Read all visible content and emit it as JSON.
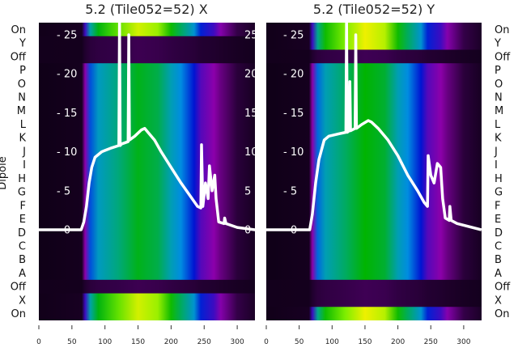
{
  "chart_data": [
    {
      "type": "heatmap",
      "title": "5.2 (Tile052=52) X",
      "ylabel": "Dipole",
      "row_labels": [
        "On",
        "Y",
        "Off",
        "P",
        "O",
        "N",
        "M",
        "L",
        "K",
        "J",
        "I",
        "H",
        "G",
        "F",
        "E",
        "D",
        "C",
        "B",
        "A",
        "Off",
        "X",
        "On"
      ],
      "row_kind": [
        "on",
        "off",
        "off",
        "sky",
        "sky",
        "sky",
        "sky",
        "sky",
        "sky",
        "sky",
        "sky",
        "sky",
        "sky",
        "sky",
        "sky",
        "sky",
        "sky",
        "sky",
        "sky",
        "off",
        "on",
        "on"
      ],
      "x_ticks": [
        0,
        50,
        100,
        150,
        200,
        250,
        300
      ],
      "xlim": [
        0,
        327
      ],
      "profile_x": [
        0,
        65,
        70,
        78,
        90,
        120,
        150,
        180,
        200,
        215,
        235,
        245,
        265,
        275,
        300,
        330
      ],
      "profile_intensity": [
        0.02,
        0.04,
        0.3,
        0.5,
        0.6,
        0.68,
        0.76,
        0.72,
        0.62,
        0.55,
        0.45,
        0.36,
        0.3,
        0.24,
        0.12,
        0.05
      ],
      "line": {
        "y_ticks": [
          0,
          5,
          10,
          15,
          20,
          25
        ],
        "ylim": [
          -11.5,
          26.5
        ],
        "x": [
          0,
          64,
          68,
          72,
          76,
          80,
          85,
          95,
          110,
          121,
          122,
          123,
          125,
          135,
          136,
          137,
          145,
          155,
          160,
          165,
          175,
          185,
          200,
          215,
          230,
          240,
          245,
          246,
          248,
          252,
          256,
          258,
          262,
          266,
          268,
          272,
          280,
          281,
          283,
          300,
          327
        ],
        "y": [
          0,
          0,
          1,
          3,
          6,
          8,
          9.3,
          10,
          10.5,
          10.8,
          27,
          10.8,
          11,
          11.3,
          25,
          11.5,
          12,
          12.8,
          13,
          12.5,
          11.5,
          10,
          8,
          6,
          4.2,
          3,
          2.8,
          10.9,
          3,
          6,
          4,
          8.2,
          5,
          7,
          4,
          1,
          0.8,
          1.5,
          0.8,
          0.3,
          0
        ]
      }
    },
    {
      "type": "heatmap",
      "title": "5.2 (Tile052=52) Y",
      "ylabel": "Dipole",
      "row_labels": [
        "On",
        "Y",
        "Off",
        "P",
        "O",
        "N",
        "M",
        "L",
        "K",
        "J",
        "I",
        "H",
        "G",
        "F",
        "E",
        "D",
        "C",
        "B",
        "A",
        "Off",
        "X",
        "On"
      ],
      "row_kind": [
        "on",
        "on",
        "off",
        "sky",
        "sky",
        "sky",
        "sky",
        "sky",
        "sky",
        "sky",
        "sky",
        "sky",
        "sky",
        "sky",
        "sky",
        "sky",
        "sky",
        "sky",
        "sky",
        "off",
        "off",
        "on"
      ],
      "x_ticks": [
        0,
        50,
        100,
        150,
        200,
        250,
        300
      ],
      "xlim": [
        0,
        327
      ],
      "profile_x": [
        0,
        65,
        70,
        78,
        90,
        120,
        150,
        180,
        200,
        215,
        235,
        245,
        265,
        275,
        300,
        330
      ],
      "profile_intensity": [
        0.02,
        0.04,
        0.3,
        0.52,
        0.62,
        0.7,
        0.78,
        0.74,
        0.62,
        0.55,
        0.45,
        0.36,
        0.3,
        0.24,
        0.12,
        0.05
      ],
      "line": {
        "y_ticks": [
          0,
          5,
          10,
          15,
          20,
          25
        ],
        "ylim": [
          -11.5,
          26.5
        ],
        "x": [
          0,
          66,
          70,
          75,
          80,
          88,
          95,
          110,
          121,
          122,
          123,
          126,
          127,
          128,
          135,
          136,
          137,
          145,
          155,
          160,
          170,
          185,
          200,
          215,
          230,
          240,
          245,
          246,
          250,
          255,
          260,
          265,
          268,
          272,
          278,
          279,
          281,
          290,
          327
        ],
        "y": [
          0,
          0,
          2,
          6,
          9,
          11.5,
          12,
          12.3,
          12.5,
          27,
          12.5,
          12.7,
          19,
          12.7,
          13,
          25,
          13,
          13.5,
          14,
          13.8,
          13,
          11.5,
          9.5,
          7,
          5,
          3.5,
          3,
          9.5,
          7,
          6,
          8.5,
          8,
          4,
          1.5,
          1.2,
          3,
          1.2,
          0.8,
          0
        ]
      }
    }
  ]
}
